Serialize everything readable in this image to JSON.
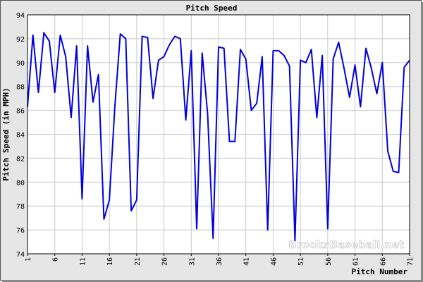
{
  "chart_data": {
    "type": "line",
    "title": "Pitch Speed",
    "xlabel": "Pitch Number",
    "ylabel": "Pitch Speed (in MPH)",
    "watermark": "BrooksBaseball.net",
    "xlim": [
      1,
      71
    ],
    "ylim": [
      74,
      94
    ],
    "xticks": [
      "1",
      "6",
      "11",
      "16",
      "21",
      "26",
      "31",
      "36",
      "41",
      "46",
      "51",
      "56",
      "61",
      "66",
      "71"
    ],
    "yticks": [
      "74",
      "76",
      "78",
      "80",
      "82",
      "84",
      "86",
      "88",
      "90",
      "92",
      "94"
    ],
    "grid": true,
    "legend": "none",
    "colors": {
      "line": "#0000dd",
      "plot_bg": "#ffffff",
      "frame_bg": "#e6e6e6",
      "grid": "#c8c8c8"
    },
    "series": [
      {
        "x": [
          1,
          2,
          3,
          4,
          5,
          6,
          7,
          8,
          9,
          10,
          11,
          12,
          13,
          14,
          15,
          16,
          17,
          18,
          19,
          20,
          21,
          22,
          23,
          24,
          25,
          26,
          27,
          28,
          29,
          30,
          31,
          32,
          33,
          34,
          35,
          36,
          37,
          38,
          39,
          40,
          41,
          42,
          43,
          44,
          45,
          46,
          47,
          48,
          49,
          50,
          51,
          52,
          53,
          54,
          55,
          56,
          57,
          58,
          59,
          60,
          61,
          62,
          63,
          64,
          65,
          66,
          67,
          68,
          69,
          70,
          71
        ],
        "values": [
          86.3,
          92.3,
          87.5,
          92.5,
          91.8,
          87.5,
          92.3,
          90.5,
          85.4,
          91.4,
          78.6,
          91.4,
          86.7,
          89.0,
          76.9,
          78.5,
          86.3,
          92.4,
          92.0,
          77.6,
          78.5,
          92.2,
          92.1,
          87.0,
          90.2,
          90.5,
          91.5,
          92.2,
          92.0,
          85.2,
          91.0,
          76.1,
          90.8,
          85.7,
          75.3,
          91.3,
          91.2,
          83.4,
          83.4,
          91.1,
          90.3,
          86.0,
          86.6,
          90.5,
          76.0,
          91.0,
          91.0,
          90.6,
          89.7,
          75.1,
          90.2,
          90.0,
          91.1,
          85.4,
          90.6,
          76.1,
          90.3,
          91.7,
          89.5,
          87.1,
          89.8,
          86.3,
          91.2,
          89.5,
          87.4,
          90.0,
          82.6,
          80.9,
          80.8,
          89.6,
          90.2
        ]
      }
    ]
  }
}
